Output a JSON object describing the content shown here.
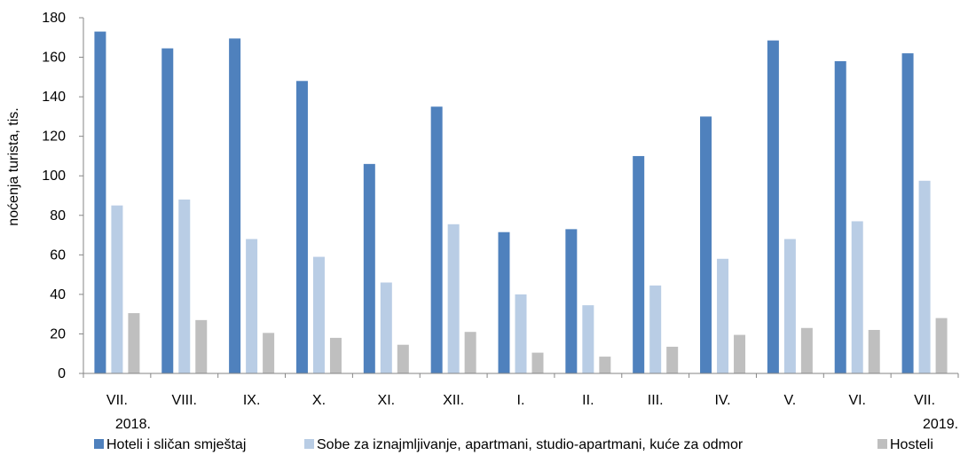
{
  "chart_data": {
    "type": "bar",
    "categories": [
      "VII.",
      "VIII.",
      "IX.",
      "X.",
      "XI.",
      "XII.",
      "I.",
      "II.",
      "III.",
      "IV.",
      "V.",
      "VI.",
      "VII."
    ],
    "year_labels": [
      {
        "text": "2018.",
        "category_index": 0
      },
      {
        "text": "2019.",
        "category_index": 12
      }
    ],
    "series": [
      {
        "name": "Hoteli i sličan smještaj",
        "color": "#4f81bd",
        "values": [
          173,
          164.5,
          169.5,
          148,
          106,
          135,
          71.5,
          73,
          110,
          130,
          168.5,
          158,
          162
        ]
      },
      {
        "name": "Sobe za iznajmljivanje, apartmani, studio-apartmani, kuće za odmor",
        "color": "#b9cde5",
        "values": [
          85,
          88,
          68,
          59,
          46,
          75.5,
          40,
          34.5,
          44.5,
          58,
          68,
          77,
          97.5
        ]
      },
      {
        "name": "Hosteli",
        "color": "#bfbfbf",
        "values": [
          30.5,
          27,
          20.5,
          18,
          14.5,
          21,
          10.5,
          8.5,
          13.5,
          19.5,
          23,
          22,
          28
        ]
      }
    ],
    "ylabel": "noćenja turista, tis.",
    "xlabel": "",
    "ylim": [
      0,
      180
    ],
    "yticks": [
      0,
      20,
      40,
      60,
      80,
      100,
      120,
      140,
      160,
      180
    ],
    "grid": false,
    "legend_position": "bottom"
  }
}
